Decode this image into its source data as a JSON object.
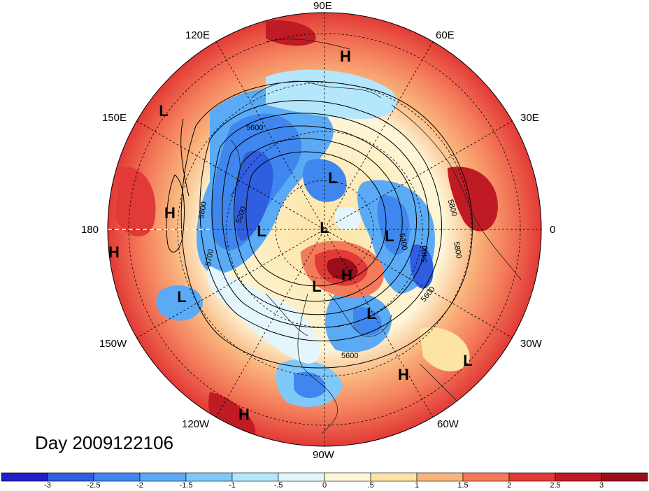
{
  "title": "Day 2009122106",
  "longitude_labels": {
    "top": "90E",
    "upper_left": "120E",
    "upper_right": "60E",
    "mid_upper_left": "150E",
    "mid_upper_right": "30E",
    "left": "180",
    "right": "0",
    "mid_lower_left": "150W",
    "mid_lower_right": "30W",
    "lower_left": "120W",
    "lower_right": "60W",
    "bottom": "90W"
  },
  "pressure_centers": [
    {
      "label": "H"
    },
    {
      "label": "L"
    },
    {
      "label": "H"
    },
    {
      "label": "H"
    },
    {
      "label": "L"
    },
    {
      "label": "L"
    },
    {
      "label": "L"
    },
    {
      "label": "L"
    },
    {
      "label": "H"
    },
    {
      "label": "L"
    },
    {
      "label": "L"
    },
    {
      "label": "L"
    },
    {
      "label": "H"
    },
    {
      "label": "L"
    },
    {
      "label": "H"
    }
  ],
  "contour_labels": [
    "5600",
    "5200",
    "5800",
    "5700",
    "5800",
    "5600",
    "5400",
    "5800",
    "5600",
    "5400"
  ],
  "colorbar": {
    "ticks": [
      "-3",
      "-2.5",
      "-2",
      "-1.5",
      "-1",
      "-.5",
      "0",
      ".5",
      "1",
      "1.5",
      "2",
      "2.5",
      "3"
    ],
    "colors": [
      "#2020c8",
      "#2f5fe0",
      "#3f86ee",
      "#5aaaf5",
      "#7fc8fa",
      "#b4e6fc",
      "#e4f6fc",
      "#fdf6d8",
      "#fde3a4",
      "#f9b47c",
      "#f47b5a",
      "#e23a36",
      "#c01b24",
      "#9a0e1c"
    ]
  }
}
